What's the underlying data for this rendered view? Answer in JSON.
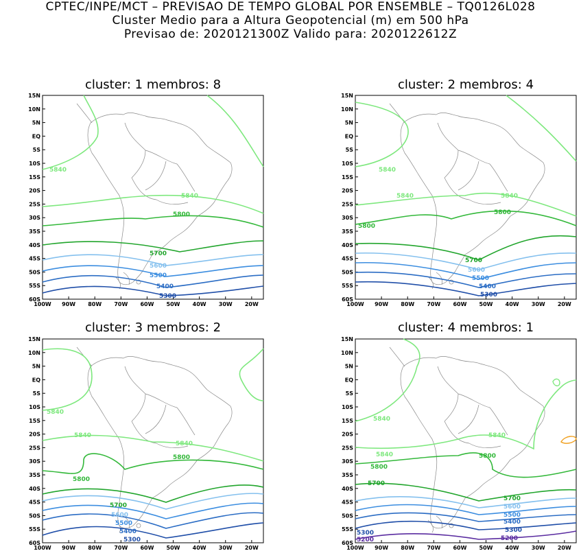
{
  "header": {
    "line1": "CPTEC/INPE/MCT – PREVISAO DE TEMPO GLOBAL POR ENSEMBLE – TQ0126L028",
    "line2": "Cluster Medio para a Altura Geopotencial (m) em 500 hPa",
    "line3": "Previsao de: 2020121300Z    Valido para: 2020122612Z"
  },
  "axes": {
    "lat_labels": [
      "15N",
      "10N",
      "5N",
      "EQ",
      "5S",
      "10S",
      "15S",
      "20S",
      "25S",
      "30S",
      "35S",
      "40S",
      "45S",
      "50S",
      "55S",
      "60S"
    ],
    "lon_labels": [
      "100W",
      "90W",
      "80W",
      "70W",
      "60W",
      "50W",
      "40W",
      "30W",
      "20W"
    ]
  },
  "colors": {
    "c5200": "#5a2ca0",
    "c5300": "#1f4ea8",
    "c5400": "#2a6cc4",
    "c5500": "#3b8de0",
    "c5600": "#84c0ee",
    "c5700": "#21a52c",
    "c5800": "#33b83a",
    "c5840": "#7ee87e",
    "warm": "#f0a020",
    "coast": "#888888"
  },
  "panels": [
    {
      "title": "cluster: 1   membros: 8",
      "labels": [
        {
          "text": "5840",
          "level": "c5840"
        },
        {
          "text": "5840",
          "level": "c5840"
        },
        {
          "text": "5800",
          "level": "c5800"
        },
        {
          "text": "5700",
          "level": "c5700"
        },
        {
          "text": "5600",
          "level": "c5600"
        },
        {
          "text": "5500",
          "level": "c5500"
        },
        {
          "text": "5400",
          "level": "c5400"
        },
        {
          "text": "5300",
          "level": "c5300"
        }
      ]
    },
    {
      "title": "cluster: 2   membros: 4",
      "labels": [
        {
          "text": "5840",
          "level": "c5840"
        },
        {
          "text": "5840",
          "level": "c5840"
        },
        {
          "text": "5840",
          "level": "c5840"
        },
        {
          "text": "5800",
          "level": "c5800"
        },
        {
          "text": "5800",
          "level": "c5800"
        },
        {
          "text": "5700",
          "level": "c5700"
        },
        {
          "text": "5600",
          "level": "c5600"
        },
        {
          "text": "5500",
          "level": "c5500"
        },
        {
          "text": "5400",
          "level": "c5400"
        },
        {
          "text": "5300",
          "level": "c5300"
        }
      ]
    },
    {
      "title": "cluster: 3   membros: 2",
      "labels": [
        {
          "text": "5840",
          "level": "c5840"
        },
        {
          "text": "5840",
          "level": "c5840"
        },
        {
          "text": "5840",
          "level": "c5840"
        },
        {
          "text": "5800",
          "level": "c5800"
        },
        {
          "text": "5800",
          "level": "c5800"
        },
        {
          "text": "5700",
          "level": "c5700"
        },
        {
          "text": "5600",
          "level": "c5600"
        },
        {
          "text": "5500",
          "level": "c5500"
        },
        {
          "text": "5400",
          "level": "c5400"
        },
        {
          "text": "5300",
          "level": "c5300"
        }
      ]
    },
    {
      "title": "cluster: 4   membros: 1",
      "labels": [
        {
          "text": "5840",
          "level": "c5840"
        },
        {
          "text": "5840",
          "level": "c5840"
        },
        {
          "text": "5840",
          "level": "c5840"
        },
        {
          "text": "5800",
          "level": "c5800"
        },
        {
          "text": "5800",
          "level": "c5800"
        },
        {
          "text": "5700",
          "level": "c5700"
        },
        {
          "text": "5700",
          "level": "c5700"
        },
        {
          "text": "5600",
          "level": "c5600"
        },
        {
          "text": "5500",
          "level": "c5500"
        },
        {
          "text": "5400",
          "level": "c5400"
        },
        {
          "text": "5300",
          "level": "c5300"
        },
        {
          "text": "5300",
          "level": "c5300"
        },
        {
          "text": "5200",
          "level": "c5200"
        },
        {
          "text": "5200",
          "level": "c5200"
        }
      ]
    }
  ]
}
